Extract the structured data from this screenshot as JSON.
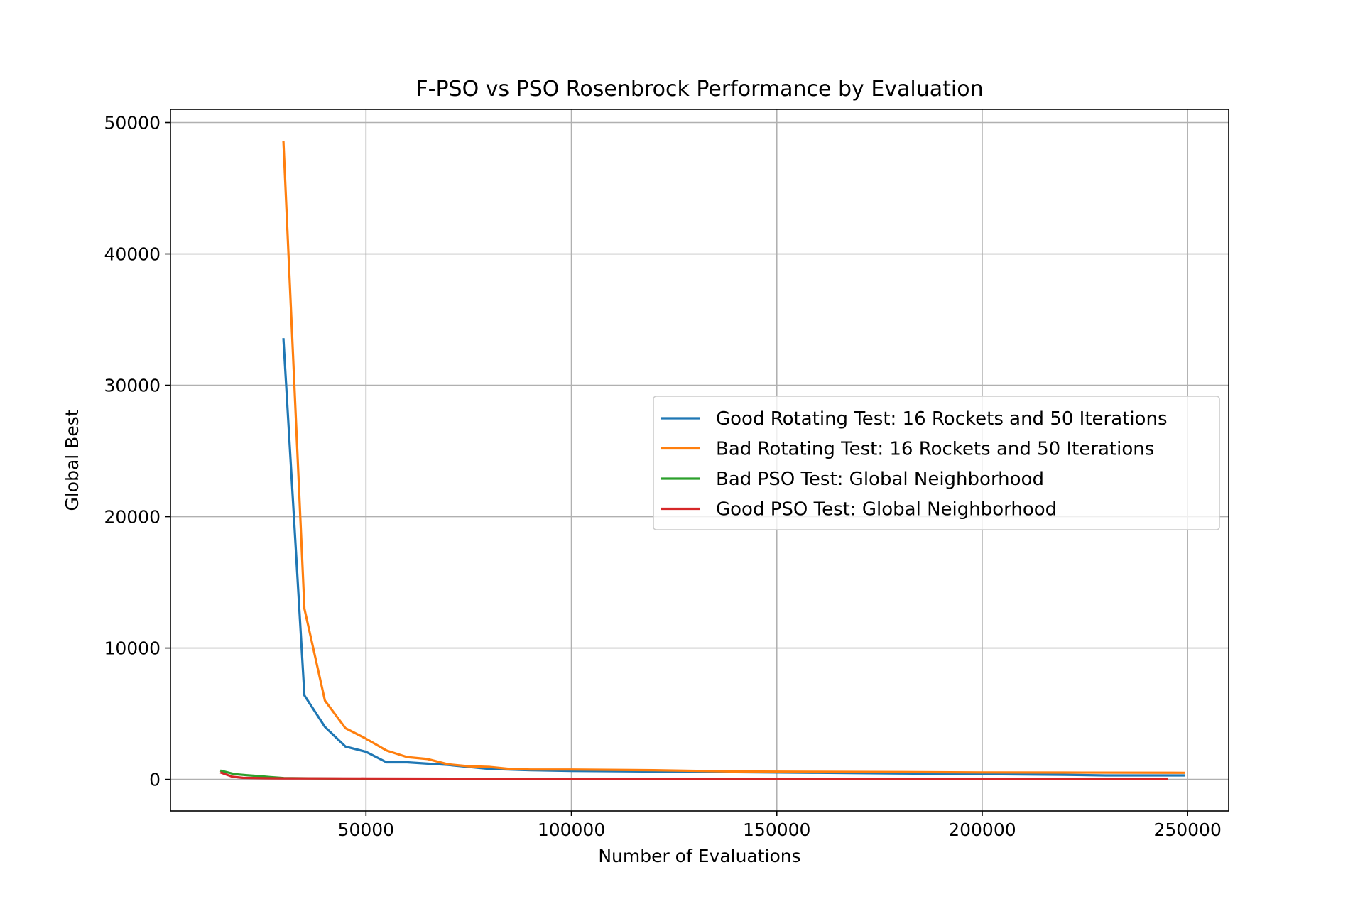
{
  "chart_data": {
    "type": "line",
    "title": "F-PSO vs PSO Rosenbrock Performance by Evaluation",
    "xlabel": "Number of Evaluations",
    "ylabel": "Global Best",
    "xlim": [
      2400,
      260000
    ],
    "ylim": [
      -2400,
      51000
    ],
    "xticks": [
      50000,
      100000,
      150000,
      200000,
      250000
    ],
    "yticks": [
      0,
      10000,
      20000,
      30000,
      40000,
      50000
    ],
    "xtick_labels": [
      "50000",
      "100000",
      "150000",
      "200000",
      "250000"
    ],
    "ytick_labels": [
      "0",
      "10000",
      "20000",
      "30000",
      "40000",
      "50000"
    ],
    "grid": true,
    "legend_position": "center-right",
    "series": [
      {
        "name": "Good Rotating Test: 16 Rockets and 50 Iterations",
        "color": "#1f77b4",
        "x": [
          29900,
          35000,
          40000,
          45000,
          50000,
          55000,
          60000,
          65000,
          70000,
          75000,
          80000,
          90000,
          100000,
          120000,
          140000,
          160000,
          180000,
          200000,
          220000,
          230000,
          249000
        ],
        "y": [
          33500,
          6400,
          4000,
          2500,
          2100,
          1300,
          1300,
          1200,
          1100,
          950,
          800,
          700,
          650,
          600,
          550,
          500,
          450,
          400,
          350,
          300,
          300
        ]
      },
      {
        "name": "Bad Rotating Test: 16 Rockets and 50 Iterations",
        "color": "#ff7f0e",
        "x": [
          29900,
          35000,
          40000,
          45000,
          50000,
          55000,
          60000,
          65000,
          70000,
          75000,
          80000,
          85000,
          90000,
          100000,
          120000,
          140000,
          160000,
          180000,
          200000,
          220000,
          249000
        ],
        "y": [
          48500,
          13000,
          6000,
          3900,
          3100,
          2200,
          1700,
          1550,
          1150,
          1000,
          950,
          800,
          750,
          750,
          700,
          600,
          580,
          560,
          530,
          520,
          500
        ]
      },
      {
        "name": "Bad PSO Test: Global Neighborhood",
        "color": "#2ca02c",
        "x": [
          14800,
          18000,
          21000,
          24000,
          27000,
          30000,
          40000,
          50000,
          100000,
          150000,
          200000,
          245000
        ],
        "y": [
          650,
          400,
          320,
          250,
          170,
          100,
          70,
          40,
          20,
          15,
          10,
          8
        ]
      },
      {
        "name": "Good PSO Test: Global Neighborhood",
        "color": "#d62728",
        "x": [
          14800,
          17500,
          20000,
          25000,
          30000,
          50000,
          100000,
          150000,
          200000,
          245000
        ],
        "y": [
          500,
          200,
          120,
          90,
          80,
          70,
          40,
          25,
          15,
          10
        ]
      }
    ]
  }
}
